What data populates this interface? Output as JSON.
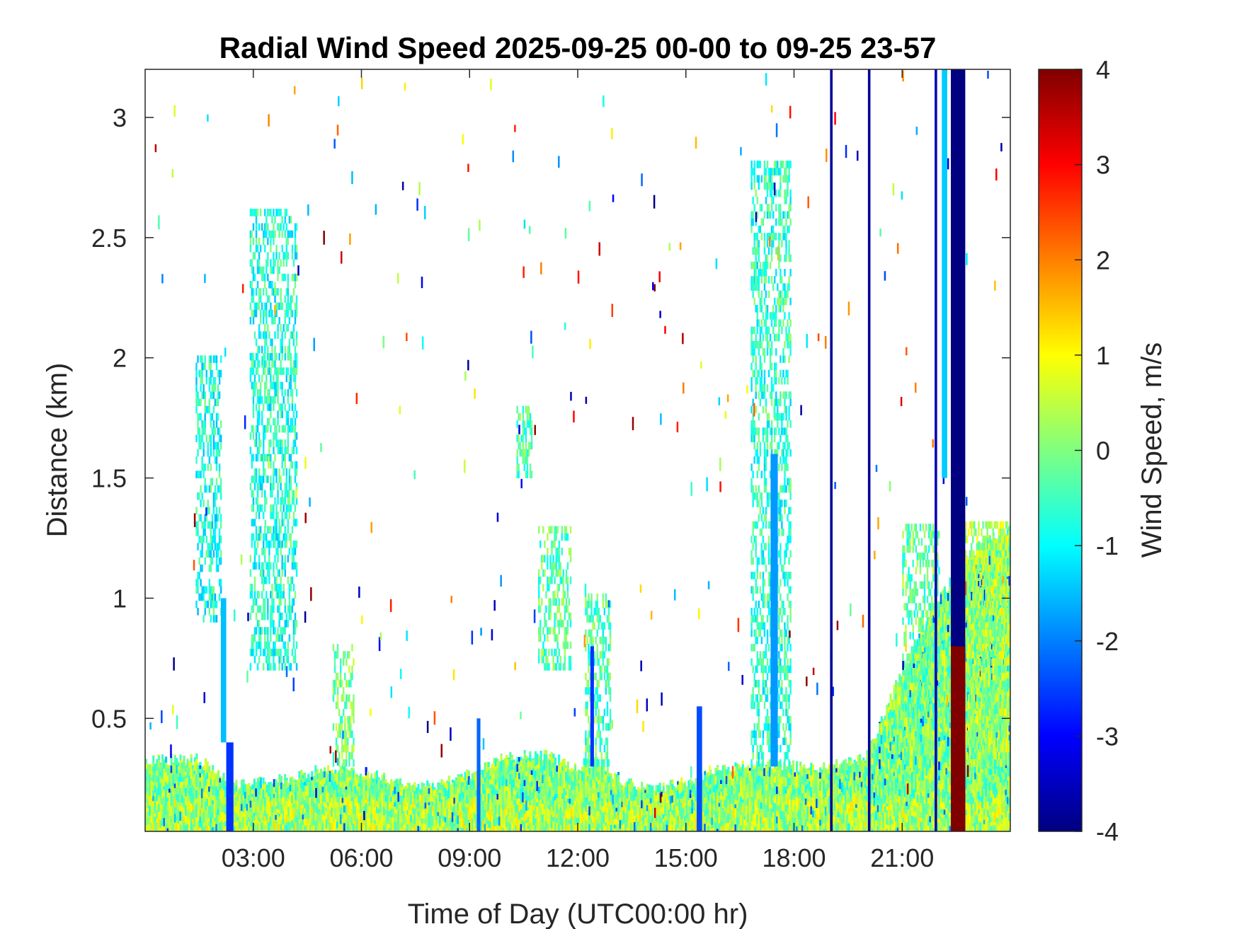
{
  "chart_data": {
    "type": "heatmap",
    "title": "Radial Wind Speed 2025-09-25 00-00 to 09-25 23-57",
    "xlabel": "Time of Day (UTC00:00 hr)",
    "ylabel": "Distance (km)",
    "colorbar_label": "Wind Speed, m/s",
    "colormap": "jet",
    "xlim": [
      0,
      24
    ],
    "ylim": [
      0.03,
      3.2
    ],
    "clim": [
      -4,
      4
    ],
    "x_ticks": [
      {
        "value": 3,
        "label": "03:00"
      },
      {
        "value": 6,
        "label": "06:00"
      },
      {
        "value": 9,
        "label": "09:00"
      },
      {
        "value": 12,
        "label": "12:00"
      },
      {
        "value": 15,
        "label": "15:00"
      },
      {
        "value": 18,
        "label": "18:00"
      },
      {
        "value": 21,
        "label": "21:00"
      }
    ],
    "y_ticks": [
      {
        "value": 0.5,
        "label": "0.5"
      },
      {
        "value": 1,
        "label": "1"
      },
      {
        "value": 1.5,
        "label": "1.5"
      },
      {
        "value": 2,
        "label": "2"
      },
      {
        "value": 2.5,
        "label": "2.5"
      },
      {
        "value": 3,
        "label": "3"
      }
    ],
    "colorbar_ticks": [
      {
        "value": 4,
        "label": "4"
      },
      {
        "value": 3,
        "label": "3"
      },
      {
        "value": 2,
        "label": "2"
      },
      {
        "value": 1,
        "label": "1"
      },
      {
        "value": 0,
        "label": "0"
      },
      {
        "value": -1,
        "label": "-1"
      },
      {
        "value": -2,
        "label": "-2"
      },
      {
        "value": -3,
        "label": "-3"
      },
      {
        "value": -4,
        "label": "-4"
      }
    ],
    "near_surface_layer_top_km": [
      [
        0,
        0.33
      ],
      [
        1.5,
        0.33
      ],
      [
        2.5,
        0.22
      ],
      [
        4,
        0.25
      ],
      [
        5,
        0.3
      ],
      [
        6,
        0.28
      ],
      [
        7,
        0.24
      ],
      [
        8,
        0.22
      ],
      [
        9,
        0.27
      ],
      [
        10,
        0.34
      ],
      [
        11,
        0.35
      ],
      [
        12,
        0.3
      ],
      [
        12.5,
        0.33
      ],
      [
        13,
        0.26
      ],
      [
        14,
        0.2
      ],
      [
        15,
        0.24
      ],
      [
        16,
        0.29
      ],
      [
        17,
        0.32
      ],
      [
        18,
        0.3
      ],
      [
        19,
        0.3
      ],
      [
        20,
        0.34
      ],
      [
        21,
        0.7
      ],
      [
        22,
        1.0
      ],
      [
        23,
        1.2
      ],
      [
        24,
        1.3
      ]
    ],
    "features": [
      {
        "x": [
          1.4,
          2.1
        ],
        "y": [
          0.9,
          2.0
        ],
        "value": -0.8
      },
      {
        "x": [
          2.9,
          4.2
        ],
        "y": [
          0.7,
          2.6
        ],
        "value": -0.7
      },
      {
        "x": [
          5.2,
          5.8
        ],
        "y": [
          0.3,
          0.8
        ],
        "value": 0
      },
      {
        "x": [
          10.3,
          10.7
        ],
        "y": [
          1.5,
          1.8
        ],
        "value": -0.3
      },
      {
        "x": [
          10.9,
          11.8
        ],
        "y": [
          0.7,
          1.3
        ],
        "value": -0.3
      },
      {
        "x": [
          12.2,
          12.9
        ],
        "y": [
          0.3,
          1.0
        ],
        "value": -0.4
      },
      {
        "x": [
          16.8,
          17.9
        ],
        "y": [
          0.3,
          2.8
        ],
        "value": -0.6
      },
      {
        "x": [
          21.0,
          22.0
        ],
        "y": [
          0.5,
          1.3
        ],
        "value": -0.2
      },
      {
        "x": [
          22.5,
          23.9
        ],
        "y": [
          0.3,
          1.3
        ],
        "value": 0.4
      }
    ],
    "vertical_bands": [
      {
        "x": [
          2.25,
          2.45
        ],
        "y": [
          0.03,
          0.4
        ],
        "value": -2.6
      },
      {
        "x": [
          2.1,
          2.25
        ],
        "y": [
          0.4,
          1.0
        ],
        "value": -1.5
      },
      {
        "x": [
          9.2,
          9.3
        ],
        "y": [
          0.03,
          0.5
        ],
        "value": -2.2
      },
      {
        "x": [
          12.35,
          12.45
        ],
        "y": [
          0.3,
          0.8
        ],
        "value": -2.6
      },
      {
        "x": [
          15.3,
          15.45
        ],
        "y": [
          0.03,
          0.55
        ],
        "value": -2.4
      },
      {
        "x": [
          17.35,
          17.55
        ],
        "y": [
          0.3,
          1.6
        ],
        "value": -1.8
      },
      {
        "x": [
          19.0,
          19.07
        ],
        "y": [
          0.03,
          3.2
        ],
        "value": -3.8
      },
      {
        "x": [
          20.05,
          20.12
        ],
        "y": [
          0.03,
          3.2
        ],
        "value": -3.8
      },
      {
        "x": [
          21.9,
          21.97
        ],
        "y": [
          0.03,
          3.2
        ],
        "value": -3.6
      },
      {
        "x": [
          22.1,
          22.25
        ],
        "y": [
          1.5,
          3.2
        ],
        "value": -1.4
      },
      {
        "x": [
          22.35,
          22.75
        ],
        "y": [
          0.03,
          3.2
        ],
        "value": -4
      },
      {
        "x": [
          22.35,
          22.75
        ],
        "y": [
          0.03,
          0.8
        ],
        "value": 4
      }
    ]
  }
}
